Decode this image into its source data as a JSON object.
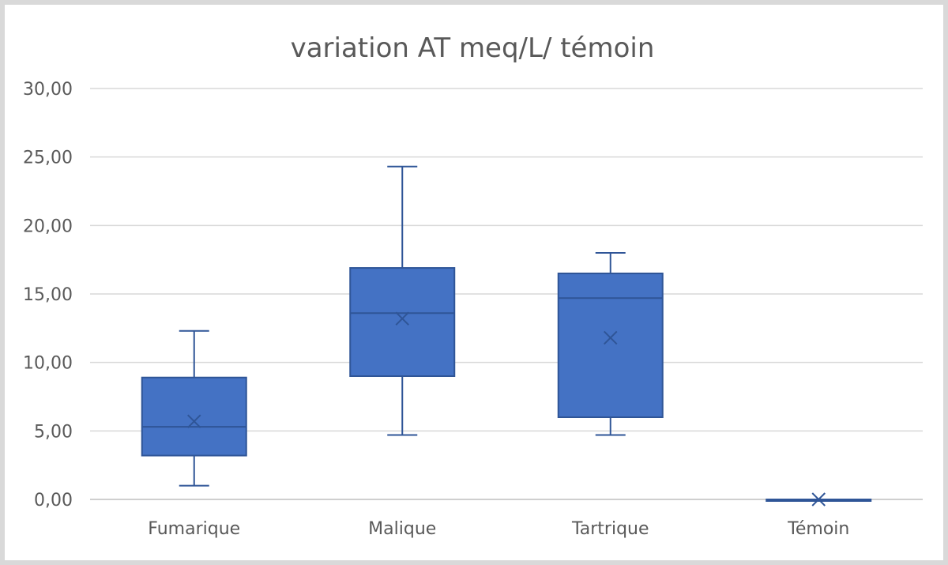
{
  "chart_data": {
    "type": "box",
    "title": "variation AT meq/L/ témoin",
    "xlabel": "",
    "ylabel": "",
    "ylim": [
      0,
      30
    ],
    "yticks": [
      "0,00",
      "5,00",
      "10,00",
      "15,00",
      "20,00",
      "25,00",
      "30,00"
    ],
    "ytick_values": [
      0,
      5,
      10,
      15,
      20,
      25,
      30
    ],
    "grid": true,
    "legend": "none",
    "categories": [
      "Fumarique",
      "Malique",
      "Tartrique",
      "Témoin"
    ],
    "boxes": [
      {
        "category": "Fumarique",
        "min": 1.0,
        "q1": 3.2,
        "median": 5.3,
        "mean": 5.7,
        "q3": 8.9,
        "max": 12.3
      },
      {
        "category": "Malique",
        "min": 4.7,
        "q1": 9.0,
        "median": 13.6,
        "mean": 13.2,
        "q3": 16.9,
        "max": 24.3
      },
      {
        "category": "Tartrique",
        "min": 4.7,
        "q1": 6.0,
        "median": 14.7,
        "mean": 11.8,
        "q3": 16.5,
        "max": 18.0
      },
      {
        "category": "Témoin",
        "min": 0.0,
        "q1": 0.0,
        "median": 0.0,
        "mean": 0.0,
        "q3": 0.0,
        "max": 0.0
      }
    ],
    "colors": {
      "box_fill": "#4472c4",
      "box_stroke": "#2f5597"
    }
  }
}
